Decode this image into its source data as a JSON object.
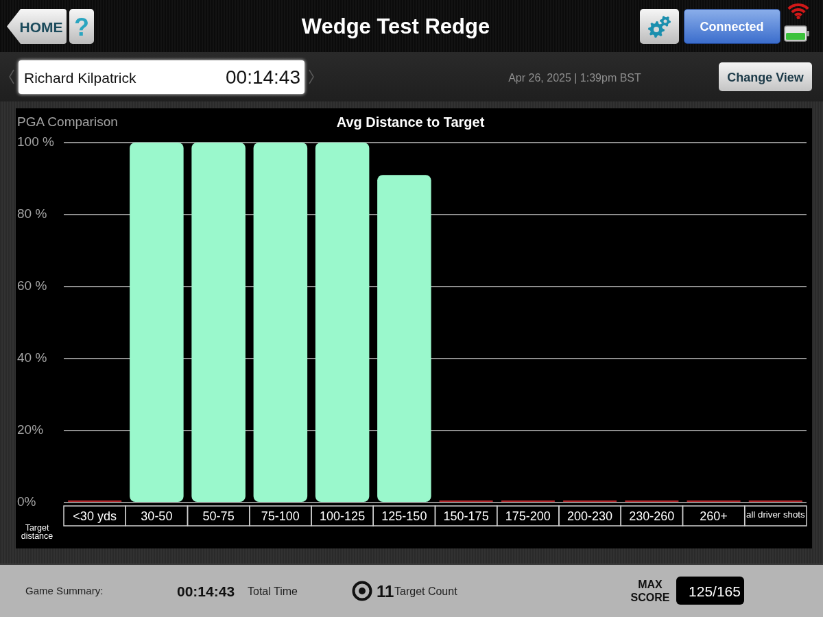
{
  "chart_data": {
    "type": "bar",
    "title": "Avg Distance to Target",
    "ylabel": "PGA Comparison",
    "xlabel": "Target distance",
    "categories": [
      "<30 yds",
      "30-50",
      "50-75",
      "75-100",
      "100-125",
      "125-150",
      "150-175",
      "175-200",
      "200-230",
      "230-260",
      "260+",
      "all driver shots"
    ],
    "values": [
      0,
      100,
      100,
      100,
      100,
      91,
      0,
      0,
      0,
      0,
      0,
      0
    ],
    "colors": [
      "#b3262b",
      "#9af8cc",
      "#9af8cc",
      "#9af8cc",
      "#9af8cc",
      "#9af8cc",
      "#b3262b",
      "#b3262b",
      "#b3262b",
      "#b3262b",
      "#b3262b",
      "#b3262b"
    ],
    "ylim": [
      0,
      100
    ],
    "yticks": [
      {
        "value": 0,
        "label": "0%"
      },
      {
        "value": 20,
        "label": "20%"
      },
      {
        "value": 40,
        "label": "40 %"
      },
      {
        "value": 60,
        "label": "60 %"
      },
      {
        "value": 80,
        "label": "80 %"
      },
      {
        "value": 100,
        "label": "100 %"
      }
    ],
    "grid": "y",
    "annotations": [
      "HOME",
      "?",
      "Wedge Test Redge",
      "Connected",
      "Richard Kilpatrick",
      "00:14:43",
      "Apr 26, 2025 | 1:39pm BST",
      "Change View",
      "Game Summary:",
      "00:14:43",
      "Total Time",
      "11",
      "Target Count",
      "MAX SCORE",
      "125/165"
    ]
  }
}
